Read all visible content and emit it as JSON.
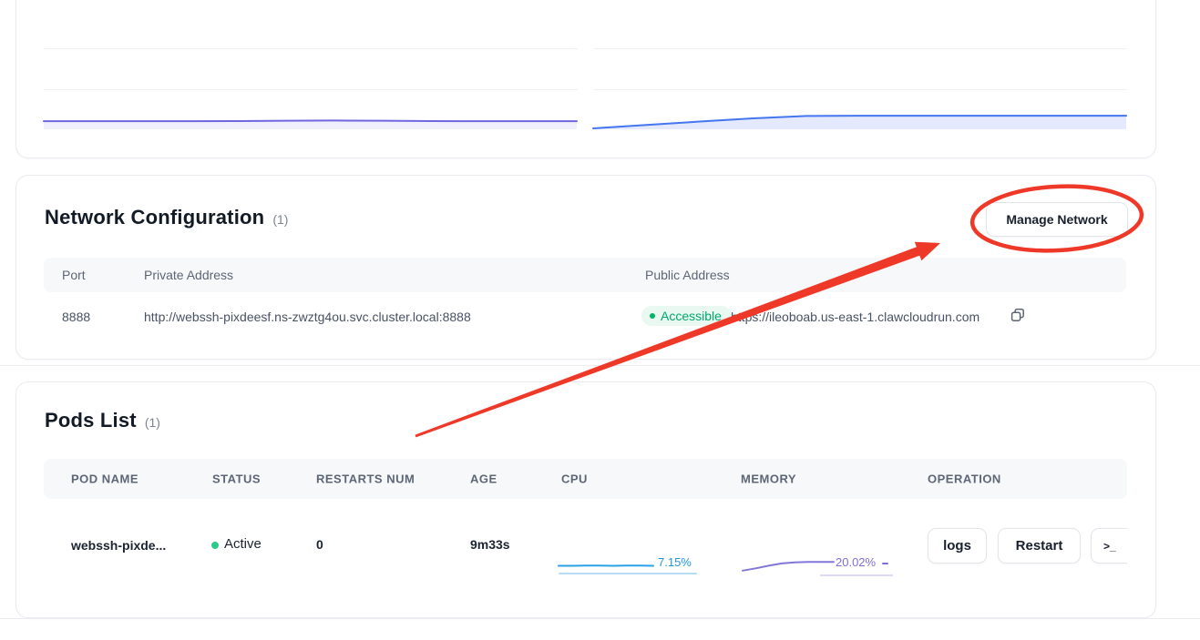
{
  "network": {
    "title": "Network Configuration",
    "count": "(1)",
    "manage_button": "Manage Network",
    "columns": [
      "Port",
      "Private Address",
      "Public Address"
    ],
    "row": {
      "port": "8888",
      "private_address": "http://webssh-pixdeesf.ns-zwztg4ou.svc.cluster.local:8888",
      "status_badge": "Accessible",
      "public_address": "https://ileoboab.us-east-1.clawcloudrun.com"
    }
  },
  "pods": {
    "title": "Pods List",
    "count": "(1)",
    "columns": [
      "POD NAME",
      "STATUS",
      "RESTARTS NUM",
      "AGE",
      "CPU",
      "MEMORY",
      "OPERATION"
    ],
    "row": {
      "name": "webssh-pixde...",
      "status": "Active",
      "restarts": "0",
      "age": "9m33s",
      "logs_button": "logs",
      "restart_button": "Restart",
      "terminal_icon": ">_"
    }
  },
  "chart_data": [
    {
      "id": "overview-metric-left",
      "type": "area",
      "title": "",
      "x": [
        0,
        1,
        2,
        3,
        4,
        5,
        6,
        7,
        8,
        9,
        10,
        11
      ],
      "values": [
        36,
        36,
        36,
        36,
        36.5,
        38,
        39,
        38,
        36.5,
        36,
        36,
        36
      ],
      "ylim": [
        0,
        100
      ],
      "grid": true,
      "color": "#6f66e0",
      "fill": "rgba(111,102,224,0.10)",
      "stroke_width": 2
    },
    {
      "id": "overview-metric-right",
      "type": "area",
      "title": "",
      "x": [
        0,
        1,
        2,
        3,
        4,
        5,
        6,
        7,
        8,
        9,
        10
      ],
      "values": [
        0,
        17,
        34,
        50,
        62,
        63,
        63,
        63,
        63,
        63,
        63
      ],
      "ylim": [
        0,
        100
      ],
      "grid": true,
      "color": "#4476f0",
      "fill": "rgba(88,120,240,0.16)",
      "stroke_width": 2
    },
    {
      "id": "pod-cpu-sparkline",
      "type": "line",
      "label": "7.15%",
      "x": [
        0,
        1,
        2,
        3,
        4,
        5,
        6,
        7
      ],
      "values": [
        47,
        47,
        48,
        48,
        47,
        48,
        48,
        47
      ],
      "ylim": [
        0,
        100
      ],
      "grid": false,
      "color": "#2aa0e6",
      "stroke_width": 2
    },
    {
      "id": "pod-memory-sparkline",
      "type": "line",
      "label": "20.02%",
      "x": [
        0,
        1,
        2,
        3,
        4,
        5,
        6,
        7
      ],
      "values": [
        12,
        26,
        42,
        56,
        63,
        65,
        65,
        65
      ],
      "ylim": [
        0,
        100
      ],
      "grid": false,
      "color": "#8376d9",
      "stroke_width": 2
    }
  ],
  "colors": {
    "accent_green": "#00a76f",
    "status_dot_green": "#2fc98c",
    "cpu_label_blue": "#2196d9",
    "memory_label_purple": "#7d6fd8",
    "annotation_red": "#ef3928",
    "table_header_bg": "#f7f8fa"
  }
}
